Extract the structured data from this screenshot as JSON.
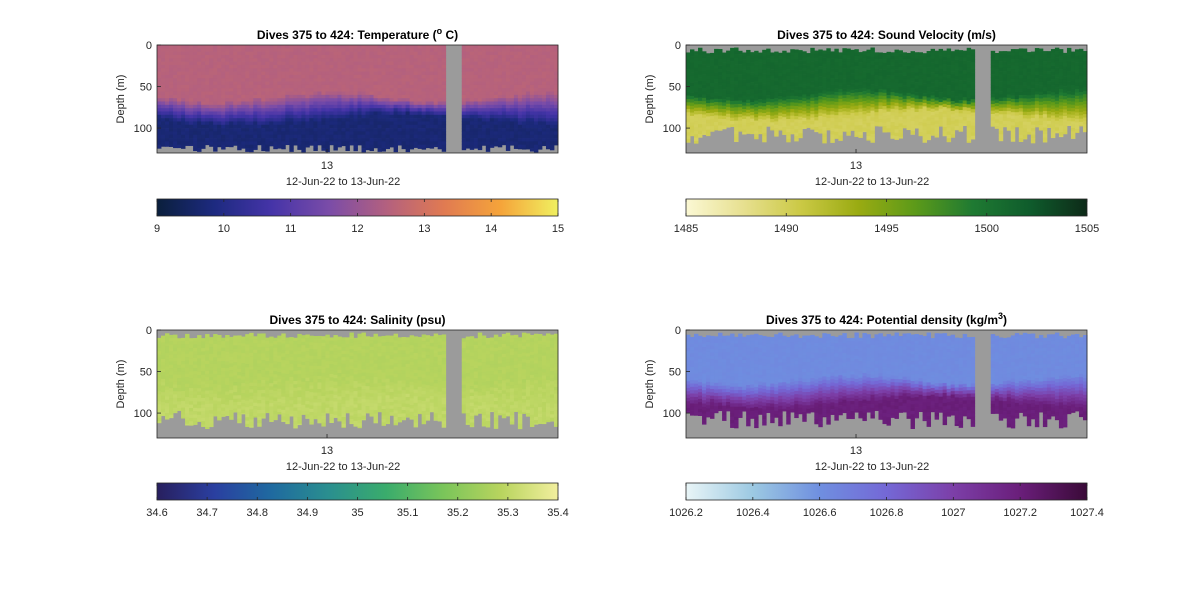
{
  "figure": {
    "background": "#ffffff",
    "missing_color": "#9b9b9b"
  },
  "chart_data": [
    {
      "type": "heatmap",
      "title_main": "Dives 375 to 424: Temperature (",
      "title_sup": "o",
      "title_tail": " C)",
      "ylabel": "Depth (m)",
      "yticks": [
        "0",
        "50",
        "100"
      ],
      "ylim": [
        0,
        130
      ],
      "xtick": "13",
      "date_range": "12-Jun-22 to 13-Jun-22",
      "dives": [
        375,
        424
      ],
      "colorbar": {
        "min": 9,
        "max": 15,
        "ticks": [
          "9",
          "10",
          "11",
          "12",
          "13",
          "14",
          "15"
        ],
        "colors": [
          "#0a1f3c",
          "#1d2a80",
          "#4534a8",
          "#7a4ca8",
          "#b3607f",
          "#e07a52",
          "#f5a43a",
          "#f0f060"
        ]
      },
      "profile": {
        "surface_value": 12.5,
        "deep_value": 9.7,
        "thermocline_depth": [
          58,
          85
        ]
      }
    },
    {
      "type": "heatmap",
      "title_main": "Dives 375 to 424: Sound Velocity (m/s)",
      "ylabel": "Depth (m)",
      "yticks": [
        "0",
        "50",
        "100"
      ],
      "ylim": [
        0,
        130
      ],
      "xtick": "13",
      "date_range": "12-Jun-22 to 13-Jun-22",
      "dives": [
        375,
        424
      ],
      "colorbar": {
        "min": 1485,
        "max": 1505,
        "ticks": [
          "1485",
          "1490",
          "1495",
          "1500",
          "1505"
        ],
        "colors": [
          "#fbf8d4",
          "#e7e090",
          "#cbc945",
          "#9aab12",
          "#5c9a19",
          "#1f7a32",
          "#0f5c2c",
          "#0d2a18"
        ]
      },
      "profile": {
        "surface_value": 1501,
        "deep_value": 1490,
        "thermocline_depth": [
          55,
          80
        ]
      }
    },
    {
      "type": "heatmap",
      "title_main": "Dives 375 to 424: Salinity (psu)",
      "ylabel": "Depth (m)",
      "yticks": [
        "0",
        "50",
        "100"
      ],
      "ylim": [
        0,
        130
      ],
      "xtick": "13",
      "date_range": "12-Jun-22 to 13-Jun-22",
      "dives": [
        375,
        424
      ],
      "colorbar": {
        "min": 34.6,
        "max": 35.4,
        "ticks": [
          "34.6",
          "34.7",
          "34.8",
          "34.9",
          "35",
          "35.1",
          "35.2",
          "35.3",
          "35.4"
        ],
        "colors": [
          "#281f5e",
          "#2a3fa0",
          "#1f6aa0",
          "#2a8f8f",
          "#3aac6c",
          "#7ac55a",
          "#b8d45e",
          "#f2ef9e"
        ]
      },
      "profile": {
        "surface_value": 35.28,
        "deep_value": 35.3,
        "thermocline_depth": [
          55,
          80
        ]
      }
    },
    {
      "type": "heatmap",
      "title_main": "Dives 375 to 424: Potential density (kg/m",
      "title_sup": "3",
      "title_tail": ")",
      "ylabel": "Depth (m)",
      "yticks": [
        "0",
        "50",
        "100"
      ],
      "ylim": [
        0,
        130
      ],
      "xtick": "13",
      "date_range": "12-Jun-22 to 13-Jun-22",
      "dives": [
        375,
        424
      ],
      "colorbar": {
        "min": 1026.2,
        "max": 1027.4,
        "ticks": [
          "1026.2",
          "1026.4",
          "1026.6",
          "1026.8",
          "1027",
          "1027.2",
          "1027.4"
        ],
        "colors": [
          "#e9f5f7",
          "#9cc9e2",
          "#6f8fe0",
          "#7468d6",
          "#7c3fa8",
          "#6a1e7a",
          "#3a0a38"
        ]
      },
      "profile": {
        "surface_value": 1026.62,
        "deep_value": 1027.2,
        "thermocline_depth": [
          55,
          82
        ]
      }
    }
  ]
}
